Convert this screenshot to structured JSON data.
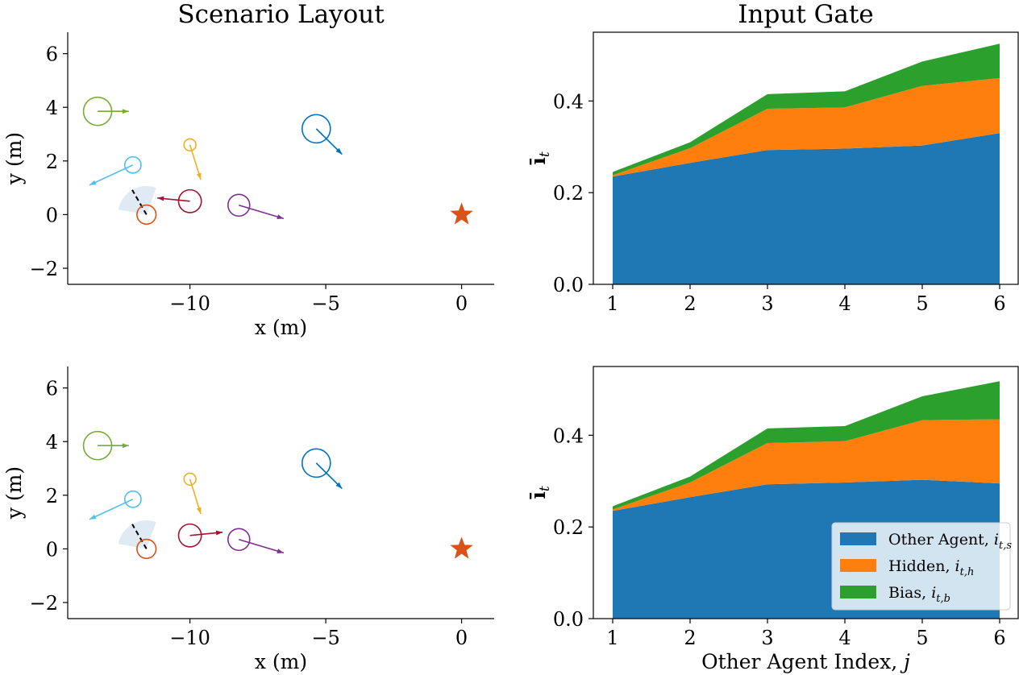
{
  "colors": {
    "stack": [
      "#1f77b4",
      "#ff7f0e",
      "#2ca02c"
    ],
    "agent_index_colors": [
      "#0072bd",
      "#77ac30",
      "#7e2f8e",
      "#edb120",
      "#4dbeee",
      "#a2142f"
    ],
    "ego": "#d95319",
    "goal_star": "#d95319",
    "fov": "#dce8f4"
  },
  "chart_data": [
    {
      "type": "scatter",
      "panel": "scenario-top",
      "title": "Scenario Layout",
      "xlabel": "x (m)",
      "ylabel": "y (m)",
      "xlim": [
        -14.5,
        1.2
      ],
      "ylim": [
        -2.6,
        6.8
      ],
      "xticks": [
        -10,
        -5,
        0
      ],
      "yticks": [
        -2,
        0,
        2,
        4,
        6
      ],
      "xtick_labels": [
        "−10",
        "−5",
        "0"
      ],
      "ytick_labels": [
        "−2",
        "0",
        "2",
        "4",
        "6"
      ],
      "goal": {
        "x": 0,
        "y": 0
      },
      "ego": {
        "x": -11.6,
        "y": 0.0,
        "r": 0.22,
        "fov_heading_deg": 120,
        "fov_width_deg": 100,
        "fov_range": 1.0
      },
      "agents": [
        {
          "id": 1,
          "x": -5.35,
          "y": 3.2,
          "r": 0.52,
          "dx": 0.95,
          "dy": -0.95,
          "color": "#0072bd"
        },
        {
          "id": 2,
          "x": -13.4,
          "y": 3.85,
          "r": 0.52,
          "dx": 1.15,
          "dy": 0.0,
          "color": "#77ac30"
        },
        {
          "id": 3,
          "x": -8.2,
          "y": 0.35,
          "r": 0.4,
          "dx": 1.65,
          "dy": -0.5,
          "color": "#7e2f8e"
        },
        {
          "id": 4,
          "x": -10.0,
          "y": 2.6,
          "r": 0.22,
          "dx": 0.4,
          "dy": -1.3,
          "color": "#edb120"
        },
        {
          "id": 5,
          "x": -12.1,
          "y": 1.85,
          "r": 0.3,
          "dx": -1.6,
          "dy": -0.75,
          "color": "#4dbeee"
        },
        {
          "id": 6,
          "x": -10.0,
          "y": 0.5,
          "r": 0.42,
          "dx": -1.2,
          "dy": 0.12,
          "color": "#a2142f"
        }
      ]
    },
    {
      "type": "area",
      "panel": "gate-top",
      "title": "Input Gate",
      "ylabel": "ī_t",
      "xlabel": "",
      "categories": [
        "1",
        "2",
        "3",
        "4",
        "5",
        "6"
      ],
      "ylim": [
        0,
        0.55
      ],
      "yticks": [
        0.0,
        0.2,
        0.4
      ],
      "ytick_labels": [
        "0.0",
        "0.2",
        "0.4"
      ],
      "series": [
        {
          "name": "Other Agent, i_{t,s}",
          "values": [
            0.235,
            0.265,
            0.293,
            0.296,
            0.303,
            0.33
          ]
        },
        {
          "name": "Hidden, i_{t,h}",
          "values": [
            0.003,
            0.032,
            0.09,
            0.09,
            0.13,
            0.12
          ]
        },
        {
          "name": "Bias, i_{t,b}",
          "values": [
            0.007,
            0.013,
            0.032,
            0.035,
            0.053,
            0.075
          ]
        }
      ]
    },
    {
      "type": "scatter",
      "panel": "scenario-bottom",
      "title": "",
      "xlabel": "x (m)",
      "ylabel": "y (m)",
      "xlim": [
        -14.5,
        1.2
      ],
      "ylim": [
        -2.6,
        6.8
      ],
      "xticks": [
        -10,
        -5,
        0
      ],
      "yticks": [
        -2,
        0,
        2,
        4,
        6
      ],
      "xtick_labels": [
        "−10",
        "−5",
        "0"
      ],
      "ytick_labels": [
        "−2",
        "0",
        "2",
        "4",
        "6"
      ],
      "goal": {
        "x": 0,
        "y": 0
      },
      "ego": {
        "x": -11.6,
        "y": 0.0,
        "r": 0.22,
        "fov_heading_deg": 120,
        "fov_width_deg": 100,
        "fov_range": 1.0
      },
      "agents": [
        {
          "id": 1,
          "x": -5.35,
          "y": 3.2,
          "r": 0.52,
          "dx": 0.95,
          "dy": -0.95,
          "color": "#0072bd"
        },
        {
          "id": 2,
          "x": -13.4,
          "y": 3.85,
          "r": 0.52,
          "dx": 1.15,
          "dy": 0.0,
          "color": "#77ac30"
        },
        {
          "id": 3,
          "x": -8.2,
          "y": 0.35,
          "r": 0.4,
          "dx": 1.65,
          "dy": -0.5,
          "color": "#7e2f8e"
        },
        {
          "id": 4,
          "x": -10.0,
          "y": 2.6,
          "r": 0.22,
          "dx": 0.4,
          "dy": -1.3,
          "color": "#edb120"
        },
        {
          "id": 5,
          "x": -12.1,
          "y": 1.85,
          "r": 0.3,
          "dx": -1.6,
          "dy": -0.75,
          "color": "#4dbeee"
        },
        {
          "id": 6,
          "x": -10.0,
          "y": 0.5,
          "r": 0.42,
          "dx": 1.2,
          "dy": 0.12,
          "color": "#a2142f"
        }
      ]
    },
    {
      "type": "area",
      "panel": "gate-bottom",
      "title": "",
      "ylabel": "ī_t",
      "xlabel": "Other Agent Index, j",
      "categories": [
        "1",
        "2",
        "3",
        "4",
        "5",
        "6"
      ],
      "ylim": [
        0,
        0.55
      ],
      "yticks": [
        0.0,
        0.2,
        0.4
      ],
      "ytick_labels": [
        "0.0",
        "0.2",
        "0.4"
      ],
      "legend_position": "lower-right",
      "series": [
        {
          "name": "Other Agent, i_{t,s}",
          "values": [
            0.235,
            0.265,
            0.293,
            0.297,
            0.303,
            0.295
          ]
        },
        {
          "name": "Hidden, i_{t,h}",
          "values": [
            0.003,
            0.032,
            0.09,
            0.09,
            0.13,
            0.14
          ]
        },
        {
          "name": "Bias, i_{t,b}",
          "values": [
            0.007,
            0.013,
            0.032,
            0.033,
            0.052,
            0.083
          ]
        }
      ]
    }
  ]
}
